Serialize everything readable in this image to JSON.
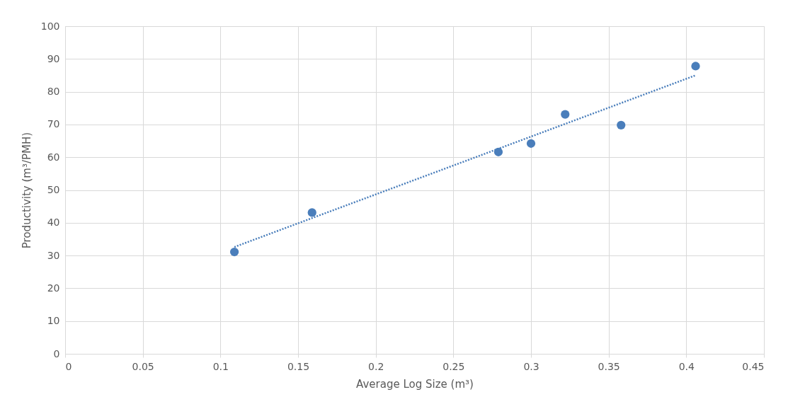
{
  "chart_data": {
    "type": "scatter",
    "xlabel": "Average Log Size (m³)",
    "ylabel": "Productivity (m³/PMH)",
    "xlim": [
      0,
      0.45
    ],
    "xticks": [
      0,
      0.05,
      0.1,
      0.15,
      0.2,
      0.25,
      0.3,
      0.35,
      0.4,
      0.45
    ],
    "ylim": [
      0,
      100
    ],
    "yticks": [
      0,
      10,
      20,
      30,
      40,
      50,
      60,
      70,
      80,
      90,
      100
    ],
    "grid": true,
    "series": [
      {
        "type": "scatter",
        "marker": "circle",
        "color": "#4a7ebb",
        "x": [
          0.109,
          0.159,
          0.279,
          0.3,
          0.322,
          0.358,
          0.406
        ],
        "values": [
          31.1,
          43.1,
          61.6,
          64.2,
          73.1,
          69.8,
          87.8
        ]
      },
      {
        "type": "line",
        "color": "#4a7ebb",
        "line_style": "dotted",
        "x": [
          0.109,
          0.406
        ],
        "values": [
          32.6,
          85.0
        ]
      }
    ]
  }
}
